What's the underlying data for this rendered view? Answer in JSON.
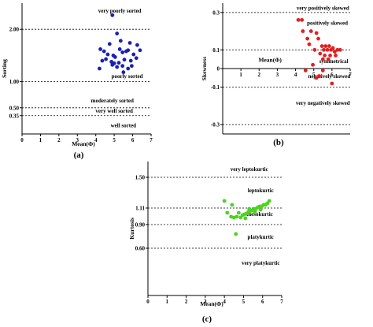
{
  "chart_data": [
    {
      "type": "scatter",
      "panel_label": "(a)",
      "xlabel": "Mean(Φ)",
      "ylabel": "Sorting",
      "xlim": [
        0,
        7
      ],
      "ylim": [
        0,
        2.5
      ],
      "x_ticks": [
        "0",
        "1",
        "2",
        "3",
        "4",
        "5",
        "6",
        "7"
      ],
      "y_ticks": [
        {
          "value": 0.35,
          "label": "0.35"
        },
        {
          "value": 0.5,
          "label": "0.50"
        },
        {
          "value": 1.0,
          "label": "1.00"
        },
        {
          "value": 2.0,
          "label": "2.00"
        }
      ],
      "reference_lines": [
        0.35,
        0.5,
        1.0,
        2.0
      ],
      "categories": [
        {
          "label": "very poorly sorted",
          "x": 5.3,
          "y": 2.32
        },
        {
          "label": "poorly sorted",
          "x": 5.7,
          "y": 1.07
        },
        {
          "label": "moderately sorted",
          "x": 4.9,
          "y": 0.6
        },
        {
          "label": "very well sorted",
          "x": 5.0,
          "y": 0.41
        },
        {
          "label": "well sorted",
          "x": 5.5,
          "y": 0.13
        }
      ],
      "color": "#1a1fb5",
      "points": [
        [
          4.9,
          2.27
        ],
        [
          5.15,
          1.92
        ],
        [
          5.35,
          1.78
        ],
        [
          4.75,
          1.72
        ],
        [
          5.85,
          1.74
        ],
        [
          6.25,
          1.7
        ],
        [
          4.25,
          1.62
        ],
        [
          4.45,
          1.58
        ],
        [
          4.65,
          1.52
        ],
        [
          4.95,
          1.5
        ],
        [
          5.05,
          1.47
        ],
        [
          5.45,
          1.56
        ],
        [
          5.75,
          1.6
        ],
        [
          6.05,
          1.52
        ],
        [
          6.4,
          1.6
        ],
        [
          4.35,
          1.4
        ],
        [
          4.55,
          1.43
        ],
        [
          4.85,
          1.38
        ],
        [
          5.0,
          1.35
        ],
        [
          5.25,
          1.36
        ],
        [
          5.55,
          1.42
        ],
        [
          5.9,
          1.4
        ],
        [
          6.2,
          1.45
        ],
        [
          4.2,
          1.25
        ],
        [
          4.9,
          1.32
        ],
        [
          5.15,
          1.28
        ],
        [
          5.45,
          1.3
        ],
        [
          5.75,
          1.25
        ],
        [
          5.95,
          1.3
        ],
        [
          5.5,
          1.18
        ],
        [
          5.65,
          1.58
        ],
        [
          5.3,
          1.62
        ]
      ]
    },
    {
      "type": "scatter",
      "panel_label": "(b)",
      "xlabel": "Mean(Φ)",
      "ylabel": "Skewness",
      "xlim": [
        0,
        7
      ],
      "ylim": [
        -0.35,
        0.35
      ],
      "x_ticks": [
        "0",
        "1",
        "2",
        "3",
        "4",
        "5",
        "6",
        "7"
      ],
      "y_ticks": [
        {
          "value": 0.3,
          "label": "0.3"
        },
        {
          "value": 0.1,
          "label": "0.1"
        },
        {
          "value": 0.0,
          "label": "0"
        },
        {
          "value": -0.1,
          "label": "-0.1"
        },
        {
          "value": -0.3,
          "label": "-0.3"
        }
      ],
      "reference_lines": [
        0.3,
        0.1,
        -0.1,
        -0.3
      ],
      "categories": [
        {
          "label": "very positively skewed",
          "x": 5.5,
          "y": 0.315
        },
        {
          "label": "positively skewed",
          "x": 5.75,
          "y": 0.235
        },
        {
          "label": "symmetrical",
          "x": 6.1,
          "y": 0.03
        },
        {
          "label": "negatively skewed",
          "x": 5.85,
          "y": -0.05
        },
        {
          "label": "very negatively skewed",
          "x": 5.5,
          "y": -0.195
        }
      ],
      "color": "#e02020",
      "points": [
        [
          4.15,
          0.26
        ],
        [
          4.35,
          0.26
        ],
        [
          4.4,
          0.2
        ],
        [
          4.85,
          0.2
        ],
        [
          5.15,
          0.19
        ],
        [
          4.65,
          0.16
        ],
        [
          5.25,
          0.16
        ],
        [
          4.75,
          0.13
        ],
        [
          5.05,
          0.1
        ],
        [
          5.45,
          0.12
        ],
        [
          5.55,
          0.1
        ],
        [
          5.65,
          0.12
        ],
        [
          5.75,
          0.1
        ],
        [
          5.85,
          0.12
        ],
        [
          5.95,
          0.1
        ],
        [
          6.05,
          0.11
        ],
        [
          6.15,
          0.09
        ],
        [
          6.3,
          0.1
        ],
        [
          6.45,
          0.1
        ],
        [
          5.35,
          0.08
        ],
        [
          5.6,
          0.07
        ],
        [
          5.9,
          0.07
        ],
        [
          6.2,
          0.07
        ],
        [
          5.5,
          0.05
        ],
        [
          5.8,
          0.05
        ],
        [
          4.95,
          0.02
        ],
        [
          5.3,
          -0.04
        ],
        [
          4.55,
          -0.01
        ],
        [
          5.15,
          -0.05
        ],
        [
          5.5,
          -0.01
        ],
        [
          6.0,
          -0.08
        ]
      ]
    },
    {
      "type": "scatter",
      "panel_label": "(c)",
      "xlabel": "Mean(Φ)",
      "ylabel": "Kurtosis",
      "xlim": [
        0,
        7
      ],
      "ylim": [
        0,
        1.7
      ],
      "x_ticks": [
        "0",
        "1",
        "2",
        "3",
        "4",
        "5",
        "6",
        "7"
      ],
      "y_ticks": [
        {
          "value": 1.5,
          "label": "1.50"
        },
        {
          "value": 1.11,
          "label": "1.11"
        },
        {
          "value": 0.9,
          "label": "0.90"
        },
        {
          "value": 0.6,
          "label": "0.60"
        }
      ],
      "reference_lines": [
        1.5,
        1.11,
        0.9,
        0.6
      ],
      "categories": [
        {
          "label": "very leptokurtic",
          "x": 5.3,
          "y": 1.58
        },
        {
          "label": "leptokurtic",
          "x": 5.9,
          "y": 1.31
        },
        {
          "label": "mesokurtic",
          "x": 5.85,
          "y": 1.01
        },
        {
          "label": "platykurtic",
          "x": 5.9,
          "y": 0.72
        },
        {
          "label": "very platykurtic",
          "x": 5.9,
          "y": 0.39
        }
      ],
      "color": "#4cd420",
      "points": [
        [
          4.0,
          1.2
        ],
        [
          4.15,
          1.05
        ],
        [
          4.35,
          1.0
        ],
        [
          4.5,
          0.99
        ],
        [
          4.65,
          1.0
        ],
        [
          4.75,
          1.05
        ],
        [
          4.85,
          0.99
        ],
        [
          4.95,
          1.02
        ],
        [
          5.05,
          1.03
        ],
        [
          5.15,
          1.04
        ],
        [
          5.25,
          1.06
        ],
        [
          5.35,
          1.07
        ],
        [
          5.45,
          1.08
        ],
        [
          5.55,
          1.1
        ],
        [
          5.65,
          1.1
        ],
        [
          5.75,
          1.12
        ],
        [
          5.85,
          1.13
        ],
        [
          5.95,
          1.13
        ],
        [
          6.05,
          1.15
        ],
        [
          6.15,
          1.15
        ],
        [
          6.25,
          1.17
        ],
        [
          5.3,
          1.1
        ],
        [
          5.6,
          1.06
        ],
        [
          4.4,
          1.15
        ],
        [
          4.6,
          0.78
        ],
        [
          5.1,
          0.98
        ],
        [
          5.9,
          1.09
        ],
        [
          6.35,
          1.2
        ]
      ]
    }
  ]
}
